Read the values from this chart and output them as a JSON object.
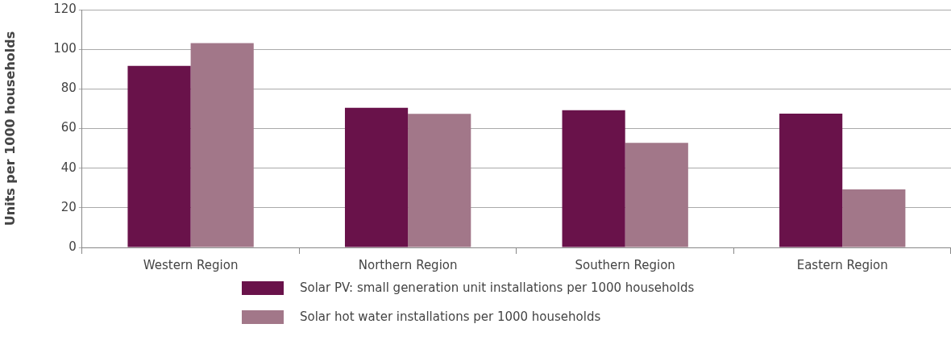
{
  "chart_data": {
    "type": "bar",
    "ylabel": "Units per 1000 households",
    "categories": [
      "Western Region",
      "Northern Region",
      "Southern Region",
      "Eastern Region"
    ],
    "series": [
      {
        "name": "Solar PV: small generation unit installations per 1000 households",
        "color": "#69124a",
        "values": [
          91.6,
          70.5,
          69.3,
          67.5
        ]
      },
      {
        "name": "Solar hot water installations per 1000 households",
        "color": "#a27789",
        "values": [
          103.1,
          67.4,
          52.8,
          29.3
        ]
      }
    ],
    "ylim": [
      0,
      120
    ],
    "yticks": [
      0,
      20,
      40,
      60,
      80,
      100,
      120
    ],
    "grid": "y",
    "legend": "bottom"
  }
}
